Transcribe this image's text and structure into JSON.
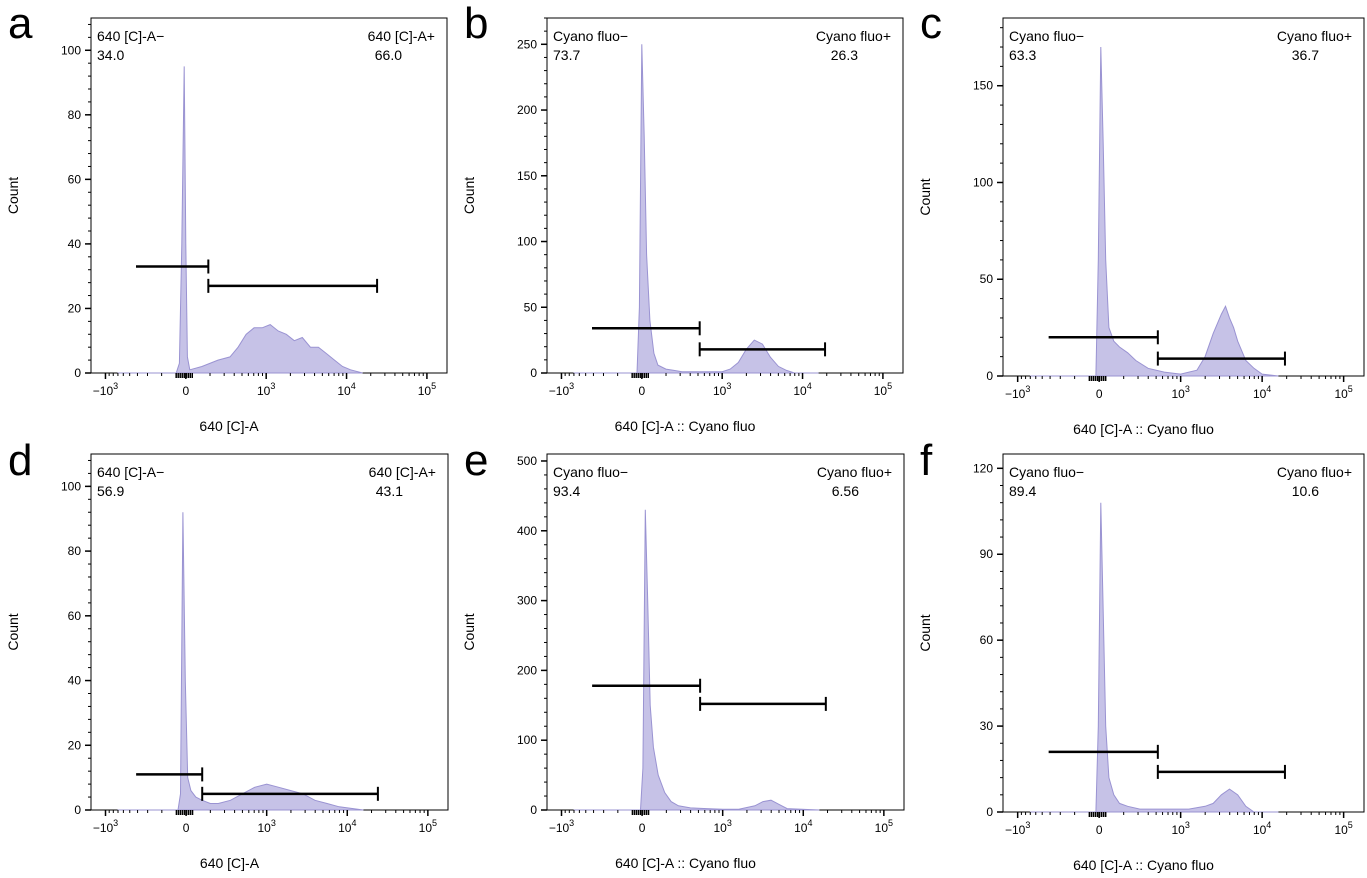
{
  "chart_data": [
    {
      "panel": "a",
      "type": "area",
      "xlabel": "640 [C]-A",
      "ylabel": "Count",
      "ylim": [
        0,
        110
      ],
      "yticks": [
        0,
        20,
        40,
        60,
        80,
        100
      ],
      "xticks": [
        "-10^3",
        "0",
        "10^3",
        "10^4",
        "10^5"
      ],
      "color": "#b3addf",
      "gates": [
        {
          "label": "640 [C]-A−",
          "value": "34.0",
          "y": 33,
          "from": -0.62,
          "to": 0.28
        },
        {
          "label": "640 [C]-A+",
          "value": "66.0",
          "y": 27,
          "from": 0.28,
          "to": 2.38
        }
      ],
      "series": [
        {
          "x": [
            -0.85,
            -0.12,
            -0.08,
            -0.05,
            -0.02,
            0.0,
            0.02,
            0.05,
            0.2,
            0.4,
            0.55,
            0.65,
            0.75,
            0.85,
            0.95,
            1.05,
            1.15,
            1.25,
            1.35,
            1.45,
            1.55,
            1.65,
            1.75,
            1.85,
            1.95,
            2.05,
            2.2
          ],
          "y": [
            0,
            0,
            3,
            40,
            95,
            40,
            5,
            1,
            2,
            4,
            5,
            8,
            12,
            14,
            14,
            15,
            13,
            12,
            10,
            11,
            8,
            8,
            6,
            4,
            2,
            1,
            0
          ]
        }
      ]
    },
    {
      "panel": "b",
      "type": "area",
      "xlabel": "640 [C]-A :: Cyano fluo",
      "ylabel": "Count",
      "ylim": [
        0,
        270
      ],
      "yticks": [
        0,
        50,
        100,
        150,
        200,
        250
      ],
      "xticks": [
        "-10^3",
        "0",
        "10^3",
        "10^4",
        "10^5"
      ],
      "color": "#b3addf",
      "gates": [
        {
          "label": "Cyano fluo−",
          "value": "73.7",
          "y": 34,
          "from": -0.62,
          "to": 0.72
        },
        {
          "label": "Cyano fluo+",
          "value": "26.3",
          "y": 18,
          "from": 0.72,
          "to": 2.28
        }
      ],
      "series": [
        {
          "x": [
            -0.85,
            -0.06,
            -0.03,
            0.0,
            0.03,
            0.06,
            0.1,
            0.15,
            0.2,
            0.3,
            0.4,
            0.5,
            0.6,
            0.8,
            1.0,
            1.1,
            1.2,
            1.3,
            1.4,
            1.5,
            1.6,
            1.7,
            1.8,
            1.9,
            2.2
          ],
          "y": [
            0,
            0,
            50,
            250,
            180,
            90,
            40,
            15,
            6,
            3,
            2,
            1,
            1,
            1,
            1,
            3,
            8,
            18,
            25,
            22,
            12,
            5,
            2,
            0,
            0
          ]
        }
      ]
    },
    {
      "panel": "c",
      "type": "area",
      "xlabel": "640 [C]-A :: Cyano fluo",
      "ylabel": "Count",
      "ylim": [
        0,
        185
      ],
      "yticks": [
        0,
        50,
        100,
        150
      ],
      "xticks": [
        "-10^3",
        "0",
        "10^3",
        "10^4",
        "10^5"
      ],
      "color": "#b3addf",
      "gates": [
        {
          "label": "Cyano fluo−",
          "value": "63.3",
          "y": 20,
          "from": -0.62,
          "to": 0.72
        },
        {
          "label": "Cyano fluo+",
          "value": "36.7",
          "y": 9,
          "from": 0.72,
          "to": 2.28
        }
      ],
      "series": [
        {
          "x": [
            -0.85,
            -0.04,
            -0.01,
            0.02,
            0.05,
            0.08,
            0.12,
            0.18,
            0.25,
            0.35,
            0.45,
            0.6,
            0.8,
            1.0,
            1.2,
            1.3,
            1.4,
            1.5,
            1.55,
            1.6,
            1.65,
            1.7,
            1.8,
            1.9,
            2.0,
            2.2
          ],
          "y": [
            0,
            0,
            60,
            170,
            120,
            60,
            25,
            18,
            15,
            12,
            8,
            4,
            2,
            1,
            3,
            10,
            22,
            32,
            36,
            30,
            25,
            18,
            8,
            4,
            1,
            0
          ]
        }
      ]
    },
    {
      "panel": "d",
      "type": "area",
      "xlabel": "640 [C]-A",
      "ylabel": "Count",
      "ylim": [
        0,
        110
      ],
      "yticks": [
        0,
        20,
        40,
        60,
        80,
        100
      ],
      "xticks": [
        "-10^3",
        "0",
        "10^3",
        "10^4",
        "10^5"
      ],
      "color": "#b3addf",
      "gates": [
        {
          "label": "640 [C]-A−",
          "value": "56.9",
          "y": 11,
          "from": -0.62,
          "to": 0.2
        },
        {
          "label": "640 [C]-A+",
          "value": "43.1",
          "y": 5,
          "from": 0.2,
          "to": 2.38
        }
      ],
      "series": [
        {
          "x": [
            -0.85,
            -0.1,
            -0.07,
            -0.04,
            -0.01,
            0.02,
            0.06,
            0.12,
            0.2,
            0.3,
            0.4,
            0.55,
            0.7,
            0.85,
            1.0,
            1.15,
            1.3,
            1.45,
            1.6,
            1.75,
            1.9,
            2.2
          ],
          "y": [
            0,
            0,
            5,
            92,
            40,
            10,
            6,
            4,
            3,
            2,
            2,
            3,
            5,
            7,
            8,
            7,
            6,
            5,
            3,
            2,
            1,
            0
          ]
        }
      ]
    },
    {
      "panel": "e",
      "type": "area",
      "xlabel": "640 [C]-A :: Cyano fluo",
      "ylabel": "Count",
      "ylim": [
        0,
        510
      ],
      "yticks": [
        0,
        100,
        200,
        300,
        400,
        500
      ],
      "xticks": [
        "-10^3",
        "0",
        "10^3",
        "10^4",
        "10^5"
      ],
      "color": "#b3addf",
      "gates": [
        {
          "label": "Cyano fluo−",
          "value": "93.4",
          "y": 178,
          "from": -0.62,
          "to": 0.72
        },
        {
          "label": "Cyano fluo+",
          "value": "6.56",
          "y": 152,
          "from": 0.72,
          "to": 2.28
        }
      ],
      "series": [
        {
          "x": [
            -0.85,
            -0.02,
            0.01,
            0.04,
            0.07,
            0.1,
            0.14,
            0.2,
            0.28,
            0.36,
            0.45,
            0.6,
            0.8,
            1.0,
            1.2,
            1.4,
            1.5,
            1.6,
            1.7,
            1.8,
            2.2
          ],
          "y": [
            0,
            0,
            60,
            430,
            300,
            150,
            90,
            50,
            25,
            12,
            6,
            3,
            2,
            1,
            1,
            6,
            12,
            14,
            8,
            2,
            0
          ]
        }
      ]
    },
    {
      "panel": "f",
      "type": "area",
      "xlabel": "640 [C]-A :: Cyano fluo",
      "ylabel": "Count",
      "ylim": [
        0,
        125
      ],
      "yticks": [
        0,
        30,
        60,
        90,
        120
      ],
      "xticks": [
        "-10^3",
        "0",
        "10^3",
        "10^4",
        "10^5"
      ],
      "color": "#b3addf",
      "gates": [
        {
          "label": "Cyano fluo−",
          "value": "89.4",
          "y": 21,
          "from": -0.62,
          "to": 0.72
        },
        {
          "label": "Cyano fluo+",
          "value": "10.6",
          "y": 14,
          "from": 0.72,
          "to": 2.28
        }
      ],
      "series": [
        {
          "x": [
            -0.85,
            -0.04,
            -0.01,
            0.02,
            0.05,
            0.08,
            0.12,
            0.18,
            0.25,
            0.35,
            0.5,
            0.7,
            0.9,
            1.1,
            1.3,
            1.4,
            1.5,
            1.6,
            1.7,
            1.8,
            1.9,
            2.2
          ],
          "y": [
            0,
            0,
            30,
            108,
            70,
            30,
            12,
            6,
            3,
            2,
            1,
            1,
            1,
            1,
            2,
            3,
            6,
            8,
            6,
            2,
            0,
            0
          ]
        }
      ]
    }
  ]
}
